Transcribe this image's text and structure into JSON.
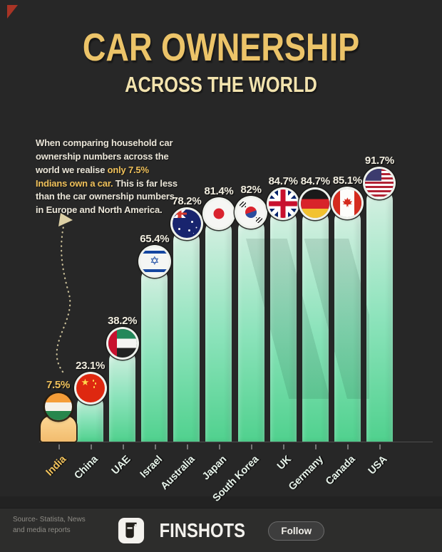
{
  "accents": {
    "corner_red": "#a83425",
    "gold": "#efc05a",
    "title_gold": "#ecc469",
    "subtitle_cream": "#f2e3ae",
    "bar_gradient_top": "#d7f0e3",
    "bar_gradient_bottom": "#50d18e",
    "india_figure_color": "#f5c77e",
    "background": "#272727"
  },
  "header": {
    "title": "CAR OWNERSHIP",
    "subtitle": "ACROSS THE WORLD"
  },
  "intro": {
    "pre": "When comparing household car ownership numbers across the world we realise ",
    "highlight": "only 7.5% Indians own a car.",
    "post": " This is far less than the car ownership numbers in Europe and North America."
  },
  "chart_data": {
    "type": "bar",
    "title": "CAR OWNERSHIP ACROSS THE WORLD",
    "unit": "%",
    "categories": [
      "India",
      "China",
      "UAE",
      "Israel",
      "Australia",
      "Japan",
      "South Korea",
      "UK",
      "Germany",
      "Canada",
      "USA"
    ],
    "values": [
      7.5,
      23.1,
      38.2,
      65.4,
      78.2,
      81.4,
      82,
      84.7,
      84.7,
      85.1,
      91.7
    ],
    "value_labels": [
      "7.5%",
      "23.1%",
      "38.2%",
      "65.4%",
      "78.2%",
      "81.4%",
      "82%",
      "84.7%",
      "84.7%",
      "85.1%",
      "91.7%"
    ],
    "flags": [
      "india",
      "china",
      "uae",
      "israel",
      "australia",
      "japan",
      "south-korea",
      "uk",
      "germany",
      "canada",
      "usa"
    ],
    "highlight_index": 0,
    "highlight_category": "India",
    "india_rendered_as": "person-figure",
    "xlabel": "",
    "ylabel": "",
    "ylim": [
      0,
      100
    ],
    "grid": false,
    "legend": false
  },
  "footer": {
    "source_line1": "Source- Statista, News",
    "source_line2": "and media reports",
    "brand": "FINSHOTS",
    "follow_label": "Follow"
  }
}
